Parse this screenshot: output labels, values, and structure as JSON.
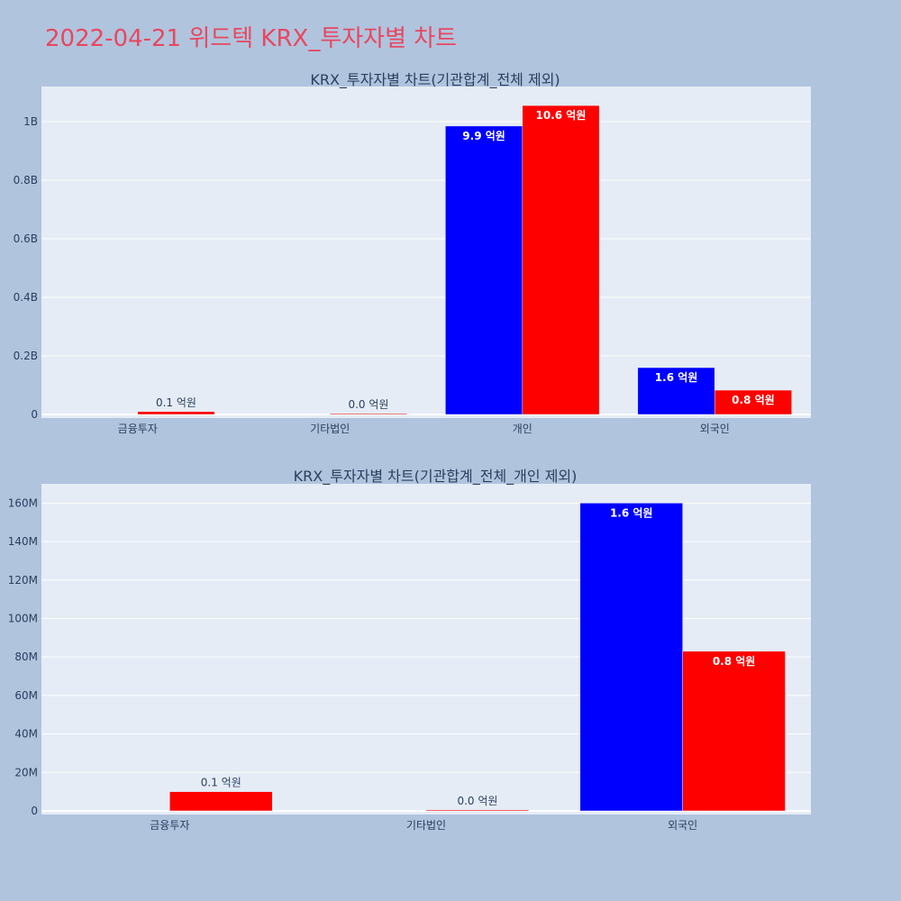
{
  "page_title": "2022-04-21 위드텍 KRX_투자자별 차트",
  "colors": {
    "background": "#b0c4de",
    "plot_bg": "#e5ecf6",
    "title": "#e8475f",
    "series_buy": "#0000ff",
    "series_sell": "#ff0000"
  },
  "chart_data": [
    {
      "type": "bar",
      "title": "KRX_투자자별 차트(기관합계_전체 제외)",
      "categories": [
        "금융투자",
        "기타법인",
        "개인",
        "외국인"
      ],
      "series": [
        {
          "color": "#0000ff",
          "values": [
            0,
            0,
            985000000,
            160000000
          ],
          "labels": [
            "",
            "",
            "9.9 억원",
            "1.6 억원"
          ]
        },
        {
          "color": "#ff0000",
          "values": [
            10000000,
            500000,
            1055000000,
            83000000
          ],
          "labels": [
            "0.1 억원",
            "0.0 억원",
            "10.6 억원",
            "0.8 억원"
          ]
        }
      ],
      "ylim": [
        0,
        1120000000
      ],
      "yticks": [
        0,
        200000000,
        400000000,
        600000000,
        800000000,
        1000000000
      ],
      "ytick_labels": [
        "0",
        "0.2B",
        "0.4B",
        "0.6B",
        "0.8B",
        "1B"
      ],
      "grid": true,
      "xlabel": "",
      "ylabel": ""
    },
    {
      "type": "bar",
      "title": "KRX_투자자별 차트(기관합계_전체_개인 제외)",
      "categories": [
        "금융투자",
        "기타법인",
        "외국인"
      ],
      "series": [
        {
          "color": "#0000ff",
          "values": [
            0,
            0,
            160000000
          ],
          "labels": [
            "",
            "",
            "1.6 억원"
          ]
        },
        {
          "color": "#ff0000",
          "values": [
            10000000,
            500000,
            83000000
          ],
          "labels": [
            "0.1 억원",
            "0.0 억원",
            "0.8 억원"
          ]
        }
      ],
      "ylim": [
        0,
        170000000
      ],
      "yticks": [
        0,
        20000000,
        40000000,
        60000000,
        80000000,
        100000000,
        120000000,
        140000000,
        160000000
      ],
      "ytick_labels": [
        "0",
        "20M",
        "40M",
        "60M",
        "80M",
        "100M",
        "120M",
        "140M",
        "160M"
      ],
      "grid": true,
      "xlabel": "",
      "ylabel": ""
    }
  ]
}
